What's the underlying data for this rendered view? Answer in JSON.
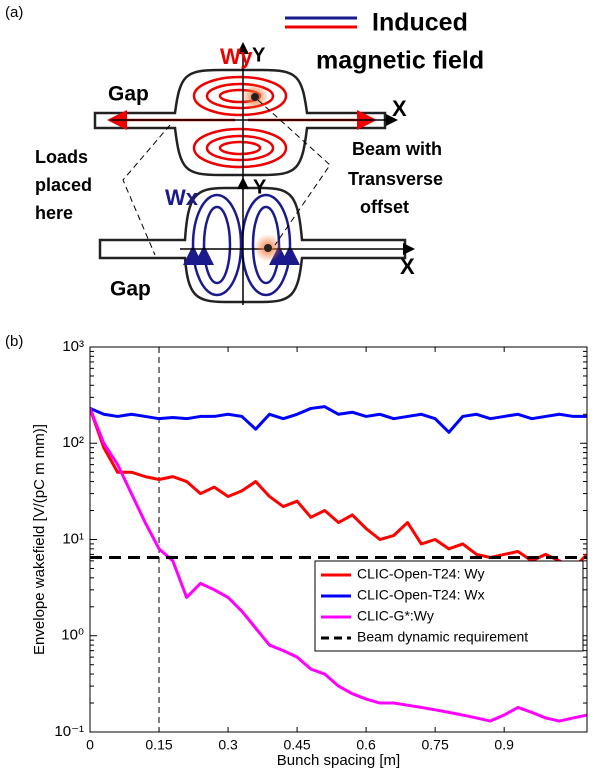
{
  "diagram": {
    "panel_label": "(a)",
    "legend": {
      "lines": [
        "Induced",
        "magnetic field"
      ]
    },
    "top": {
      "field": "Wy",
      "y_axis": "Y",
      "x_axis": "X",
      "gap": "Gap"
    },
    "bottom": {
      "field": "Wx",
      "y_axis": "Y",
      "x_axis": "X",
      "gap": "Gap"
    },
    "loads_note": [
      "Loads",
      "placed",
      "here"
    ],
    "beam_note": [
      "Beam with",
      "Transverse",
      "offset"
    ]
  },
  "chart_data": {
    "type": "line",
    "panel_label": "(b)",
    "x_label": "Bunch spacing [m]",
    "y_label": "Envelope wakefield [V/(pC m mm)]",
    "x": [
      0,
      0.03,
      0.06,
      0.09,
      0.12,
      0.15,
      0.18,
      0.21,
      0.24,
      0.27,
      0.3,
      0.33,
      0.36,
      0.39,
      0.42,
      0.45,
      0.48,
      0.51,
      0.54,
      0.57,
      0.6,
      0.63,
      0.66,
      0.69,
      0.72,
      0.75,
      0.78,
      0.81,
      0.84,
      0.87,
      0.9,
      0.93,
      0.96,
      0.99,
      1.02,
      1.05,
      1.08
    ],
    "series": [
      {
        "name": "CLIC-Open-T24: Wy",
        "color": "#ff0000",
        "values": [
          230,
          90,
          50,
          50,
          45,
          42,
          45,
          40,
          30,
          35,
          28,
          32,
          40,
          28,
          22,
          25,
          17,
          20,
          15,
          18,
          13,
          10,
          11,
          15,
          9,
          10,
          8,
          9,
          7,
          6.5,
          7,
          7.5,
          6,
          7,
          6,
          5,
          7
        ]
      },
      {
        "name": "CLIC-Open-T24: Wx",
        "color": "#0000ff",
        "values": [
          230,
          200,
          190,
          200,
          190,
          180,
          185,
          180,
          190,
          190,
          200,
          190,
          140,
          200,
          180,
          200,
          230,
          240,
          200,
          210,
          190,
          200,
          180,
          190,
          200,
          180,
          130,
          190,
          200,
          180,
          190,
          200,
          180,
          190,
          200,
          190,
          190
        ]
      },
      {
        "name": "CLIC-G*:Wy",
        "color": "#ff00ff",
        "values": [
          230,
          100,
          60,
          30,
          15,
          8,
          6,
          2.5,
          3.5,
          3,
          2.5,
          1.8,
          1.2,
          0.8,
          0.7,
          0.6,
          0.45,
          0.4,
          0.3,
          0.25,
          0.22,
          0.2,
          0.2,
          0.19,
          0.18,
          0.17,
          0.16,
          0.15,
          0.14,
          0.13,
          0.15,
          0.18,
          0.16,
          0.14,
          0.13,
          0.14,
          0.15
        ]
      }
    ],
    "reference_lines": [
      {
        "name": "Beam dynamic requirement",
        "value": 6.5,
        "color": "#000000"
      }
    ],
    "vertical_lines": [
      0.15
    ],
    "xlim": [
      0,
      1.08
    ],
    "xticks": [
      0,
      0.15,
      0.3,
      0.45,
      0.6,
      0.75,
      0.9
    ],
    "ylim": [
      0.1,
      1000
    ],
    "yticks": [
      {
        "value": 0.1,
        "label": "10⁻¹"
      },
      {
        "value": 1,
        "label": "10⁰"
      },
      {
        "value": 10,
        "label": "10¹"
      },
      {
        "value": 100,
        "label": "10²"
      },
      {
        "value": 1000,
        "label": "10³"
      }
    ],
    "log_y": true
  }
}
